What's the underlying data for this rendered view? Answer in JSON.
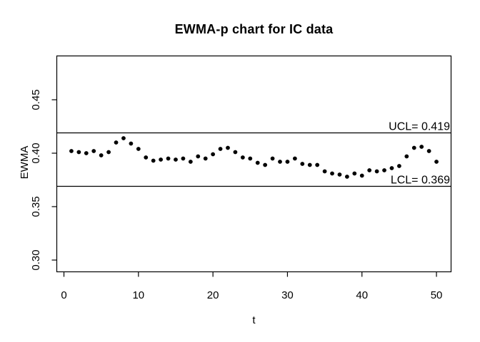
{
  "colors": {
    "foreground": "#000000",
    "background": "#ffffff"
  },
  "chart_data": {
    "type": "scatter",
    "title": "EWMA-p chart for IC data",
    "xlabel": "t",
    "ylabel": "EWMA",
    "point_style": "filled-circle",
    "grid": false,
    "legend": "none",
    "xlim": [
      -0.96,
      51.96
    ],
    "ylim": [
      0.289,
      0.491
    ],
    "x_ticks": [
      {
        "value": 0,
        "label": "0"
      },
      {
        "value": 10,
        "label": "10"
      },
      {
        "value": 20,
        "label": "20"
      },
      {
        "value": 30,
        "label": "30"
      },
      {
        "value": 40,
        "label": "40"
      },
      {
        "value": 50,
        "label": "50"
      }
    ],
    "y_ticks": [
      {
        "value": 0.3,
        "label": "0.30"
      },
      {
        "value": 0.35,
        "label": "0.35"
      },
      {
        "value": 0.4,
        "label": "0.40"
      },
      {
        "value": 0.45,
        "label": "0.45"
      }
    ],
    "control_limits": [
      {
        "name": "UCL",
        "value": 0.419,
        "label": "UCL= 0.419"
      },
      {
        "name": "LCL",
        "value": 0.369,
        "label": "LCL= 0.369"
      }
    ],
    "x": [
      1,
      2,
      3,
      4,
      5,
      6,
      7,
      8,
      9,
      10,
      11,
      12,
      13,
      14,
      15,
      16,
      17,
      18,
      19,
      20,
      21,
      22,
      23,
      24,
      25,
      26,
      27,
      28,
      29,
      30,
      31,
      32,
      33,
      34,
      35,
      36,
      37,
      38,
      39,
      40,
      41,
      42,
      43,
      44,
      45,
      46,
      47,
      48,
      49,
      50
    ],
    "y": [
      0.402,
      0.401,
      0.4,
      0.402,
      0.398,
      0.401,
      0.41,
      0.414,
      0.409,
      0.404,
      0.396,
      0.393,
      0.394,
      0.395,
      0.394,
      0.395,
      0.392,
      0.397,
      0.395,
      0.399,
      0.404,
      0.405,
      0.401,
      0.396,
      0.395,
      0.391,
      0.389,
      0.395,
      0.392,
      0.392,
      0.395,
      0.39,
      0.389,
      0.389,
      0.383,
      0.381,
      0.38,
      0.378,
      0.381,
      0.379,
      0.384,
      0.383,
      0.384,
      0.386,
      0.388,
      0.397,
      0.405,
      0.406,
      0.402,
      0.392
    ]
  }
}
